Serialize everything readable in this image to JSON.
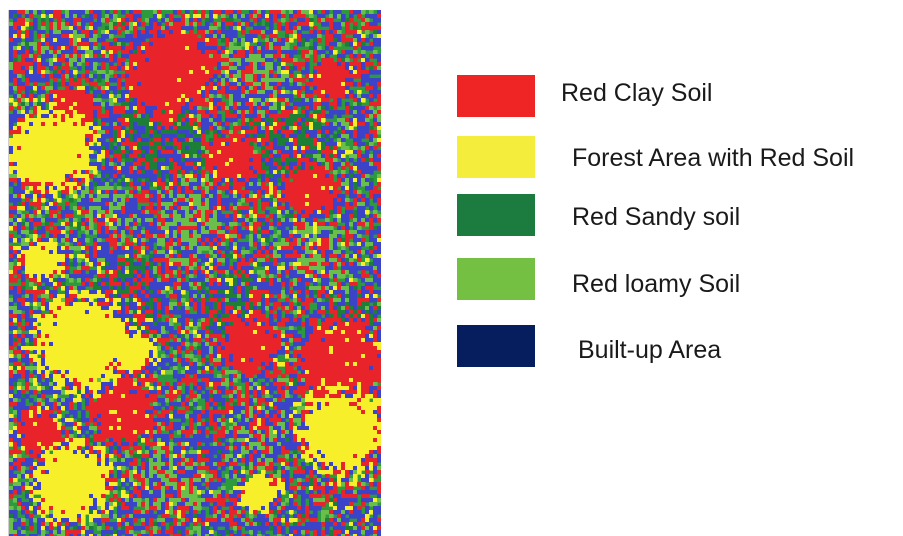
{
  "legend": {
    "items": [
      {
        "label": "Red Clay Soil",
        "color": "#ee2524"
      },
      {
        "label": "Forest Area with Red Soil",
        "color": "#f4ed3b"
      },
      {
        "label": "Red Sandy soil",
        "color": "#1c7c40"
      },
      {
        "label": "Red loamy Soil",
        "color": "#74c043"
      },
      {
        "label": "Built-up Area",
        "color": "#061d5e"
      }
    ]
  },
  "map": {
    "classes": [
      "red-clay-soil",
      "forest-red-soil",
      "red-sandy-soil",
      "red-loamy-soil",
      "built-up-area"
    ],
    "colors": {
      "base_green": "#2e9a3e",
      "dark_green": "#1d7f37",
      "light_green": "#69bf4a",
      "blue": "#3b44c8",
      "red": "#e8232a",
      "yellow": "#f6ef2a"
    }
  }
}
